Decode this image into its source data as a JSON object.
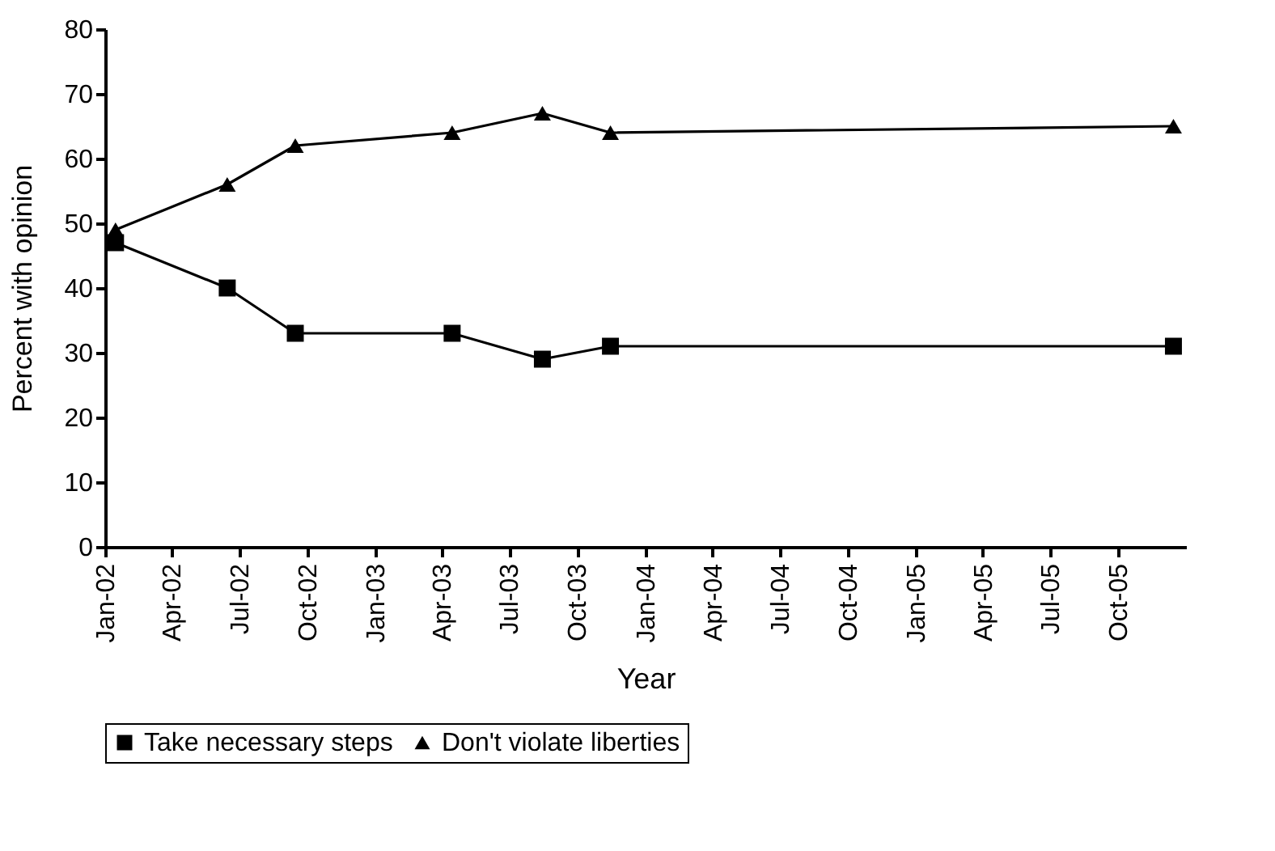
{
  "chart_data": {
    "type": "line",
    "xlabel": "Year",
    "ylabel": "Percent with opinion",
    "x": [
      "2002-01-15",
      "2002-06-15",
      "2002-09-15",
      "2003-04-15",
      "2003-08-15",
      "2003-11-15",
      "2005-12-15"
    ],
    "series": [
      {
        "name": "Take necessary steps",
        "color": "#000000",
        "marker": "square",
        "values": [
          47,
          40,
          33,
          33,
          29,
          31,
          31
        ]
      },
      {
        "name": "Don't violate liberties",
        "color": "#000000",
        "marker": "triangle",
        "values": [
          49,
          56,
          62,
          64,
          67,
          64,
          65
        ]
      }
    ],
    "xlim": [
      "2002-01-01",
      "2006-01-01"
    ],
    "xticks": [
      {
        "value": "2002-01-01",
        "label": "Jan-02"
      },
      {
        "value": "2002-04-01",
        "label": "Apr-02"
      },
      {
        "value": "2002-07-01",
        "label": "Jul-02"
      },
      {
        "value": "2002-10-01",
        "label": "Oct-02"
      },
      {
        "value": "2003-01-01",
        "label": "Jan-03"
      },
      {
        "value": "2003-04-01",
        "label": "Apr-03"
      },
      {
        "value": "2003-07-01",
        "label": "Jul-03"
      },
      {
        "value": "2003-10-01",
        "label": "Oct-03"
      },
      {
        "value": "2004-01-01",
        "label": "Jan-04"
      },
      {
        "value": "2004-04-01",
        "label": "Apr-04"
      },
      {
        "value": "2004-07-01",
        "label": "Jul-04"
      },
      {
        "value": "2004-10-01",
        "label": "Oct-04"
      },
      {
        "value": "2005-01-01",
        "label": "Jan-05"
      },
      {
        "value": "2005-04-01",
        "label": "Apr-05"
      },
      {
        "value": "2005-07-01",
        "label": "Jul-05"
      },
      {
        "value": "2005-10-01",
        "label": "Oct-05"
      }
    ],
    "ylim": [
      0,
      80
    ],
    "yticks": [
      0,
      10,
      20,
      30,
      40,
      50,
      60,
      70,
      80
    ],
    "grid": false,
    "legend": "bottom",
    "line_style": "solid"
  }
}
